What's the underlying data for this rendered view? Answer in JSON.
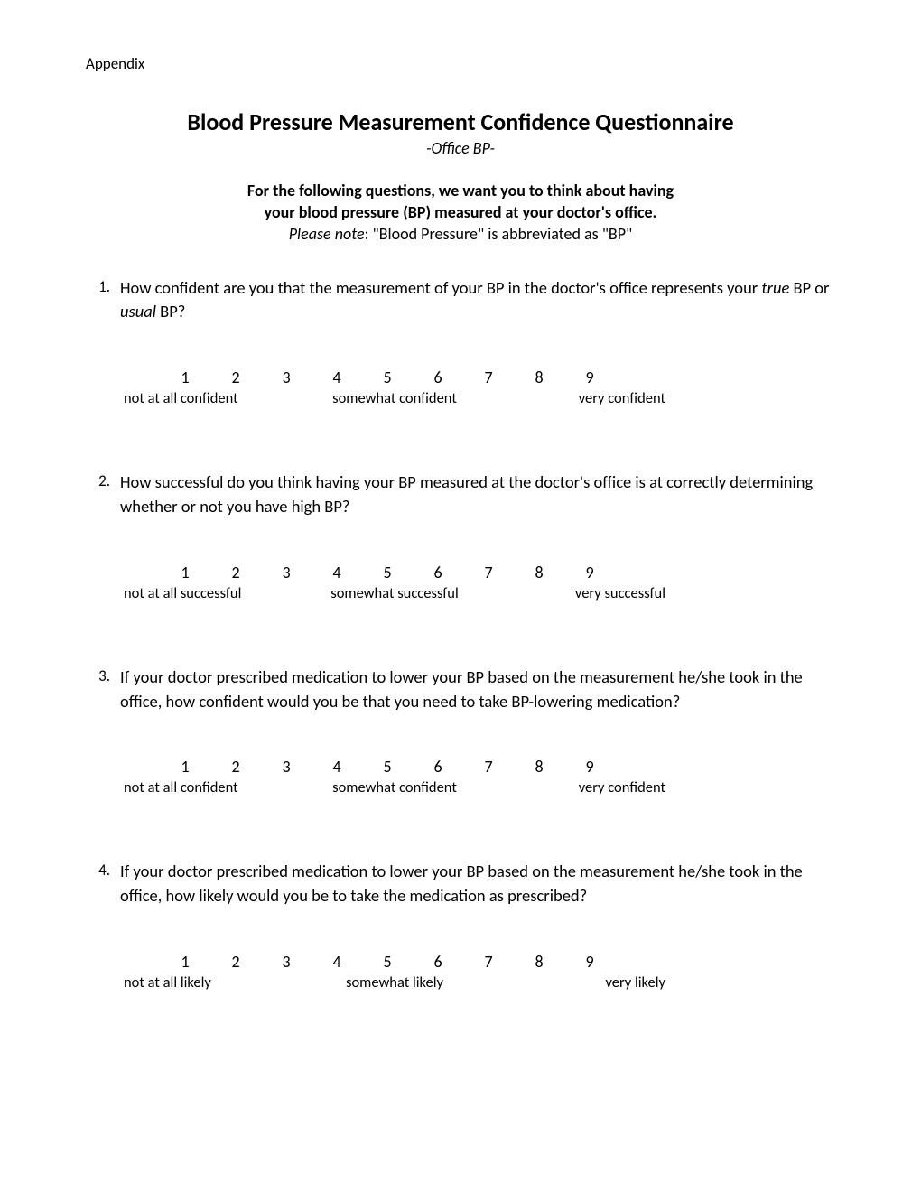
{
  "header": "Appendix",
  "title": "Blood Pressure Measurement Confidence Questionnaire",
  "subtitle": "-Office BP-",
  "instructions_line1": "For the following questions, we want you to think about having",
  "instructions_line2": "your blood pressure (BP) measured at your doctor's office.",
  "instructions_note_label": "Please note",
  "instructions_note_text": ": \"Blood Pressure\" is abbreviated as \"BP\"",
  "scale_values": [
    "1",
    "2",
    "3",
    "4",
    "5",
    "6",
    "7",
    "8",
    "9"
  ],
  "questions": [
    {
      "num": "1.",
      "text_before": "How confident are you that the measurement of your BP in the doctor's office represents your ",
      "em1": "true",
      "text_mid": " BP or ",
      "em2": "usual",
      "text_after": " BP?",
      "label_left": "not at all confident",
      "label_mid": "somewhat confident",
      "label_right": "very confident"
    },
    {
      "num": "2.",
      "text": "How successful do you think having your BP measured at the doctor's office is at correctly determining whether or not you have high BP?",
      "label_left": "not at all successful",
      "label_mid": "somewhat successful",
      "label_right": "very successful"
    },
    {
      "num": "3.",
      "text": "If your doctor prescribed medication to lower your BP based on the measurement he/she took in the office, how confident would you be that you need to take BP-lowering medication?",
      "label_left": "not at all confident",
      "label_mid": "somewhat confident",
      "label_right": "very confident"
    },
    {
      "num": "4.",
      "text": "If your doctor prescribed medication to lower your BP based on the measurement he/she took in the office, how likely would you be to take the medication as prescribed?",
      "label_left": "not at all likely",
      "label_mid": "somewhat likely",
      "label_right": "very likely"
    }
  ]
}
